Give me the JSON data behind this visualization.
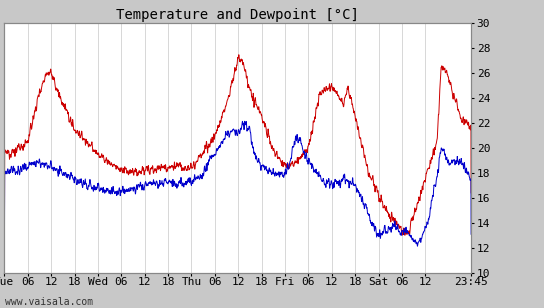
{
  "title": "Temperature and Dewpoint [°C]",
  "ylabel_right_ticks": [
    10,
    12,
    14,
    16,
    18,
    20,
    22,
    24,
    26,
    28,
    30
  ],
  "ylim": [
    10,
    30
  ],
  "total_hours": 119.75,
  "xtick_pos": [
    0,
    6,
    12,
    18,
    24,
    30,
    36,
    42,
    48,
    54,
    60,
    66,
    72,
    78,
    84,
    90,
    96,
    102,
    108,
    119.75
  ],
  "xtick_lab": [
    "Tue",
    "06",
    "12",
    "18",
    "Wed",
    "06",
    "12",
    "18",
    "Thu",
    "06",
    "12",
    "18",
    "Fri",
    "06",
    "12",
    "18",
    "Sat",
    "06",
    "12",
    "23:45"
  ],
  "background_color": "#ffffff",
  "outer_background": "#c8c8c8",
  "grid_color": "#c8c8c8",
  "line_color_temp": "#cc0000",
  "line_color_dew": "#0000cc",
  "watermark": "www.vaisala.com",
  "title_fontsize": 10,
  "tick_fontsize": 8,
  "watermark_fontsize": 7,
  "temp_keypoints": [
    [
      0,
      19.5
    ],
    [
      3,
      19.8
    ],
    [
      6,
      20.5
    ],
    [
      9,
      24.5
    ],
    [
      11,
      26.2
    ],
    [
      12,
      26.0
    ],
    [
      13,
      25.0
    ],
    [
      15,
      23.5
    ],
    [
      18,
      21.5
    ],
    [
      21,
      20.5
    ],
    [
      24,
      19.5
    ],
    [
      27,
      18.8
    ],
    [
      30,
      18.2
    ],
    [
      33,
      18.0
    ],
    [
      36,
      18.2
    ],
    [
      42,
      18.5
    ],
    [
      48,
      18.5
    ],
    [
      51,
      19.5
    ],
    [
      54,
      21.0
    ],
    [
      57,
      23.5
    ],
    [
      60,
      27.2
    ],
    [
      61,
      27.0
    ],
    [
      63,
      24.5
    ],
    [
      66,
      22.5
    ],
    [
      69,
      19.8
    ],
    [
      72,
      18.5
    ],
    [
      75,
      18.8
    ],
    [
      78,
      20.0
    ],
    [
      81,
      24.5
    ],
    [
      84,
      25.0
    ],
    [
      85,
      24.5
    ],
    [
      87,
      23.5
    ],
    [
      88,
      24.8
    ],
    [
      90,
      22.5
    ],
    [
      93,
      18.5
    ],
    [
      95,
      17.0
    ],
    [
      96,
      16.0
    ],
    [
      99,
      14.5
    ],
    [
      102,
      13.5
    ],
    [
      103,
      13.2
    ],
    [
      104,
      13.5
    ],
    [
      105,
      14.5
    ],
    [
      108,
      17.5
    ],
    [
      111,
      20.5
    ],
    [
      112,
      26.5
    ],
    [
      113,
      26.2
    ],
    [
      114,
      25.5
    ],
    [
      115,
      24.5
    ],
    [
      117,
      22.5
    ],
    [
      119.75,
      21.5
    ]
  ],
  "dew_keypoints": [
    [
      0,
      18.0
    ],
    [
      3,
      18.2
    ],
    [
      6,
      18.5
    ],
    [
      9,
      18.8
    ],
    [
      12,
      18.5
    ],
    [
      15,
      18.0
    ],
    [
      18,
      17.5
    ],
    [
      21,
      17.0
    ],
    [
      24,
      16.8
    ],
    [
      27,
      16.5
    ],
    [
      30,
      16.5
    ],
    [
      33,
      16.8
    ],
    [
      36,
      17.0
    ],
    [
      42,
      17.2
    ],
    [
      48,
      17.2
    ],
    [
      51,
      18.0
    ],
    [
      54,
      19.5
    ],
    [
      57,
      21.0
    ],
    [
      59,
      21.5
    ],
    [
      60,
      21.2
    ],
    [
      61,
      21.8
    ],
    [
      62,
      22.0
    ],
    [
      63,
      21.5
    ],
    [
      64,
      19.5
    ],
    [
      66,
      18.5
    ],
    [
      69,
      18.0
    ],
    [
      72,
      18.0
    ],
    [
      73,
      18.5
    ],
    [
      74,
      20.0
    ],
    [
      75,
      21.0
    ],
    [
      76,
      20.5
    ],
    [
      77,
      19.5
    ],
    [
      78,
      19.0
    ],
    [
      79,
      18.5
    ],
    [
      80,
      18.0
    ],
    [
      81,
      17.5
    ],
    [
      84,
      17.0
    ],
    [
      87,
      17.5
    ],
    [
      90,
      17.0
    ],
    [
      93,
      15.0
    ],
    [
      94,
      14.0
    ],
    [
      95,
      13.5
    ],
    [
      96,
      13.0
    ],
    [
      97,
      13.2
    ],
    [
      99,
      13.5
    ],
    [
      100,
      14.0
    ],
    [
      101,
      13.5
    ],
    [
      102,
      13.2
    ],
    [
      103,
      13.5
    ],
    [
      104,
      13.0
    ],
    [
      105,
      12.5
    ],
    [
      106,
      12.2
    ],
    [
      108,
      13.5
    ],
    [
      109,
      14.5
    ],
    [
      110,
      16.5
    ],
    [
      111,
      17.5
    ],
    [
      112,
      20.0
    ],
    [
      113,
      19.5
    ],
    [
      114,
      19.0
    ],
    [
      115,
      18.8
    ],
    [
      117,
      19.0
    ],
    [
      119.75,
      17.5
    ]
  ]
}
